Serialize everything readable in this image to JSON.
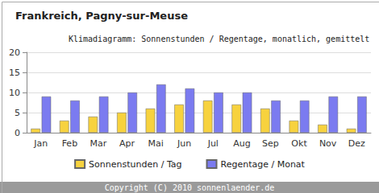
{
  "chart_data": {
    "type": "bar",
    "title": "Frankreich, Pagny-sur-Meuse",
    "subtitle": "Klimadiagramm: Sonnenstunden / Regentage, monatlich, gemittelt",
    "annotations": [
      "Copyright (C) 2010 sonnenlaender.de"
    ],
    "categories": [
      "Jan",
      "Feb",
      "Mar",
      "Apr",
      "Mai",
      "Jun",
      "Jul",
      "Aug",
      "Sep",
      "Okt",
      "Nov",
      "Dez"
    ],
    "series": [
      {
        "name": "Sonnenstunden / Tag",
        "color": "#f7d23e",
        "values": [
          1,
          3,
          4,
          5,
          6,
          7,
          8,
          7,
          6,
          3,
          2,
          1
        ]
      },
      {
        "name": "Regentage / Monat",
        "color": "#7b7bf0",
        "values": [
          9,
          8,
          9,
          10,
          12,
          11,
          10,
          10,
          8,
          8,
          9,
          9
        ]
      }
    ],
    "ylim": [
      0,
      20
    ],
    "yticks": [
      0,
      5,
      10,
      15,
      20
    ],
    "grid": true,
    "legend": "bottom"
  }
}
